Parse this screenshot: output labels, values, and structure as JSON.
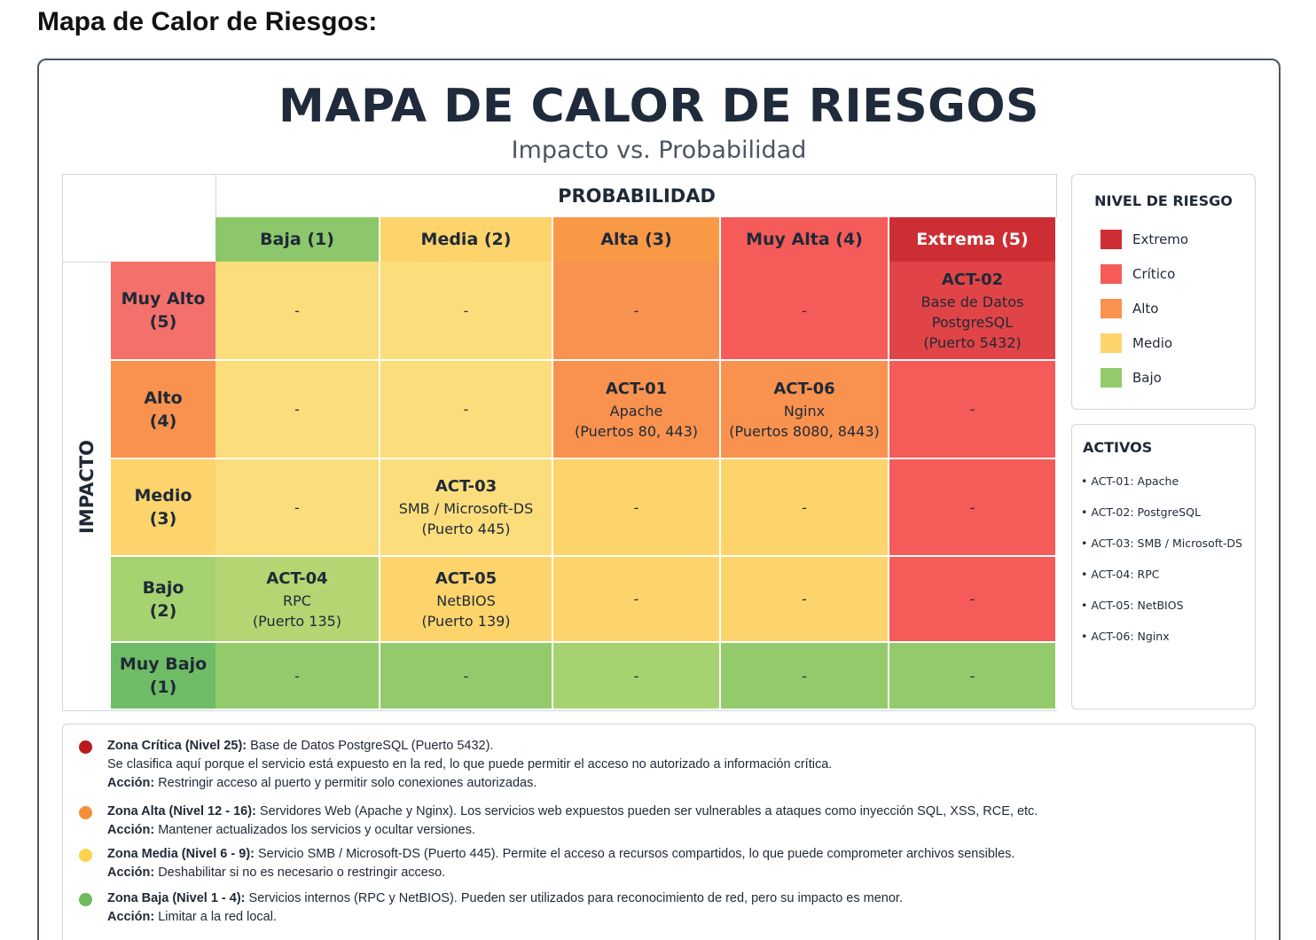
{
  "page_heading": "Mapa de Calor de Riesgos:",
  "chart_data": {
    "type": "heatmap",
    "title": "MAPA DE CALOR DE RIESGOS",
    "subtitle": "Impacto vs. Probabilidad",
    "xlabel": "PROBABILIDAD",
    "ylabel": "IMPACTO",
    "x_categories": [
      "Baja (1)",
      "Media (2)",
      "Alta (3)",
      "Muy Alta (4)",
      "Extrema (5)"
    ],
    "y_categories": [
      [
        "Muy Alto",
        "(5)"
      ],
      [
        "Alto",
        "(4)"
      ],
      [
        "Medio",
        "(3)"
      ],
      [
        "Bajo",
        "(2)"
      ],
      [
        "Muy Bajo",
        "(1)"
      ]
    ],
    "cells": [
      [
        {
          "text": [
            "-"
          ]
        },
        {
          "text": [
            "-"
          ]
        },
        {
          "text": [
            "-"
          ]
        },
        {
          "text": [
            "-"
          ]
        },
        {
          "id": "ACT-02",
          "text": [
            "Base de Datos",
            "PostgreSQL",
            "(Puerto 5432)"
          ]
        }
      ],
      [
        {
          "text": [
            "-"
          ]
        },
        {
          "text": [
            "-"
          ]
        },
        {
          "id": "ACT-01",
          "text": [
            "Apache",
            "(Puertos 80, 443)"
          ]
        },
        {
          "id": "ACT-06",
          "text": [
            "Nginx",
            "(Puertos 8080, 8443)"
          ]
        },
        {
          "text": [
            "-"
          ]
        }
      ],
      [
        {
          "text": [
            "-"
          ]
        },
        {
          "id": "ACT-03",
          "text": [
            "SMB / Microsoft-DS",
            "(Puerto 445)"
          ]
        },
        {
          "text": [
            "-"
          ]
        },
        {
          "text": [
            "-"
          ]
        },
        {
          "text": [
            "-"
          ]
        }
      ],
      [
        {
          "id": "ACT-04",
          "text": [
            "RPC",
            "(Puerto 135)"
          ]
        },
        {
          "id": "ACT-05",
          "text": [
            "NetBIOS",
            "(Puerto 139)"
          ]
        },
        {
          "text": [
            "-"
          ]
        },
        {
          "text": [
            "-"
          ]
        },
        {
          "text": [
            "-"
          ]
        }
      ],
      [
        {
          "text": [
            "-"
          ]
        },
        {
          "text": [
            "-"
          ]
        },
        {
          "text": [
            "-"
          ]
        },
        {
          "text": [
            "-"
          ]
        },
        {
          "text": [
            "-"
          ]
        }
      ]
    ],
    "cell_colors": [
      [
        "#fcdd7c",
        "#fcdd7c",
        "#f9924e",
        "#f45b59",
        "#e04447"
      ],
      [
        "#fcdd7c",
        "#fcdd7c",
        "#f9924e",
        "#f9924e",
        "#f45b59"
      ],
      [
        "#fcdd7c",
        "#fcdd7c",
        "#fcd46b",
        "#fcd46b",
        "#f45b59"
      ],
      [
        "#b4d572",
        "#fcd46b",
        "#fcd46b",
        "#fcd46b",
        "#f45b59"
      ],
      [
        "#93cb6c",
        "#93cb6c",
        "#a6d270",
        "#93cb6c",
        "#93cb6c"
      ]
    ],
    "x_header_colors": [
      "#8cc86b",
      "#fcd46b",
      "#f99845",
      "#f45b59",
      "#cc2e33"
    ],
    "y_header_colors": [
      "#f4706a",
      "#f9924e",
      "#fcd46b",
      "#a6d270",
      "#6fbc66"
    ],
    "legend_position": "right"
  },
  "legend": {
    "title": "NIVEL DE RIESGO",
    "items": [
      {
        "label": "Extremo",
        "color": "#cc2e33"
      },
      {
        "label": "Crítico",
        "color": "#f45b59"
      },
      {
        "label": "Alto",
        "color": "#f9924e"
      },
      {
        "label": "Medio",
        "color": "#fcd46b"
      },
      {
        "label": "Bajo",
        "color": "#93cb6c"
      }
    ]
  },
  "assets": {
    "title": "ACTIVOS",
    "items": [
      {
        "id": "ACT-01:",
        "name": "Apache"
      },
      {
        "id": "ACT-02:",
        "name": "PostgreSQL"
      },
      {
        "id": "ACT-03:",
        "name": "SMB / Microsoft-DS"
      },
      {
        "id": "ACT-04:",
        "name": "RPC"
      },
      {
        "id": "ACT-05:",
        "name": "NetBIOS"
      },
      {
        "id": "ACT-06:",
        "name": "Nginx"
      }
    ]
  },
  "notes": [
    {
      "color": "#b91c1c",
      "title": "Zona Crítica (Nivel 25):",
      "text": " Base de Datos PostgreSQL (Puerto 5432).",
      "line2": "Se clasifica aquí porque el servicio está expuesto en la red, lo que puede permitir el acceso no autorizado a información crítica.",
      "action_label": "Acción:",
      "action": " Restringir acceso al puerto y permitir solo conexiones autorizadas."
    },
    {
      "color": "#f59038",
      "title": "Zona Alta (Nivel 12 - 16):",
      "text": " Servidores Web (Apache y Nginx). Los servicios web expuestos pueden ser vulnerables a ataques como inyección SQL, XSS, RCE, etc.",
      "line2": "",
      "action_label": "Acción:",
      "action": " Mantener actualizados los servicios y ocultar versiones."
    },
    {
      "color": "#fcd34d",
      "title": "Zona Media (Nivel 6 - 9):",
      "text": " Servicio SMB / Microsoft-DS (Puerto 445). Permite el acceso a recursos compartidos, lo que puede comprometer archivos sensibles.",
      "line2": "",
      "action_label": "Acción:",
      "action": " Deshabilitar si no es necesario o restringir acceso."
    },
    {
      "color": "#6dbb5d",
      "title": "Zona Baja (Nivel 1 - 4):",
      "text": " Servicios internos (RPC y NetBIOS). Pueden ser utilizados para reconocimiento de red, pero su impacto es menor.",
      "line2": "",
      "action_label": "Acción:",
      "action": " Limitar a la red local."
    }
  ]
}
